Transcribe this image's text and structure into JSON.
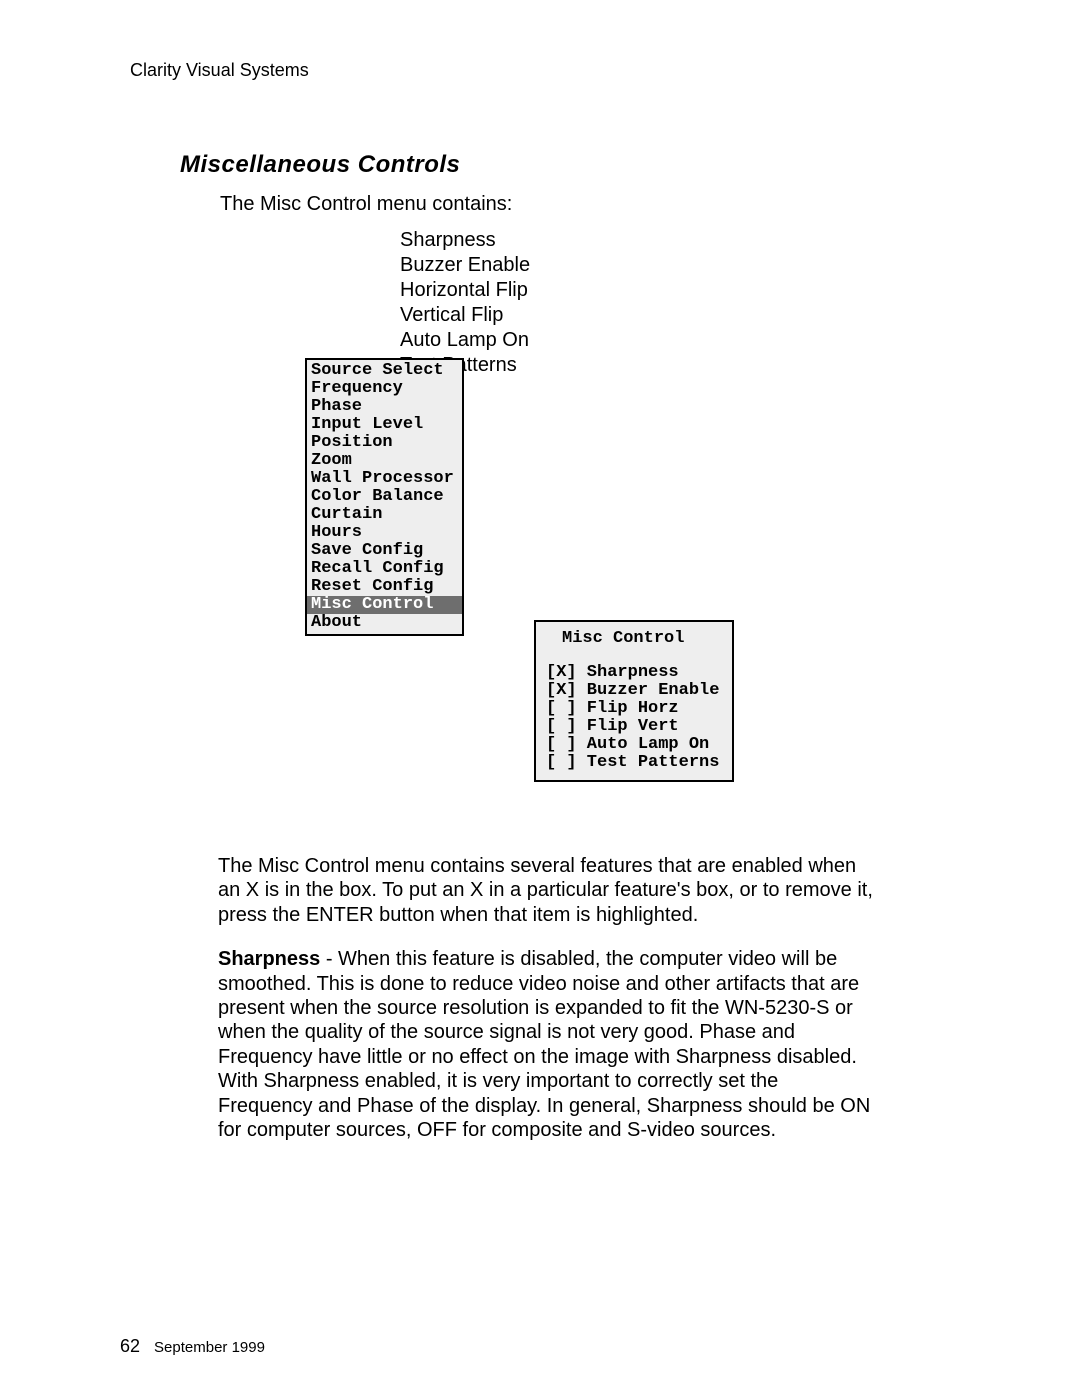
{
  "header": "Clarity Visual Systems",
  "section_title": "Miscellaneous Controls",
  "intro": "The Misc Control menu contains:",
  "features": {
    "f0": "Sharpness",
    "f1": "Buzzer Enable",
    "f2": "Horizontal Flip",
    "f3": "Vertical Flip",
    "f4": "Auto Lamp On",
    "f5": "Test Patterns"
  },
  "main_menu": {
    "colors": {
      "bg": "#eeeeee",
      "border": "#000000",
      "selected_bg": "#6e6e6e",
      "selected_fg": "#ffffff"
    },
    "selected_index": 13,
    "items": {
      "i0": "Source Select",
      "i1": "Frequency",
      "i2": "Phase",
      "i3": "Input Level",
      "i4": "Position",
      "i5": "Zoom",
      "i6": "Wall Processor",
      "i7": "Color Balance",
      "i8": "Curtain",
      "i9": "Hours",
      "i10": "Save Config",
      "i11": "Recall Config",
      "i12": "Reset Config",
      "i13": "Misc Control",
      "i14": "About"
    }
  },
  "misc_menu": {
    "title": "Misc Control",
    "lines": {
      "l0": "[X] Sharpness",
      "l1": "[X] Buzzer Enable",
      "l2": "[ ] Flip Horz",
      "l3": "[ ] Flip Vert",
      "l4": "[ ] Auto Lamp On",
      "l5": "[ ] Test Patterns"
    }
  },
  "body": {
    "p1": "The Misc Control menu contains several features that are enabled when an X is in the box. To put an X in a particular feature's box, or to remove it, press the ENTER button when that item is highlighted.",
    "p2_bold": "Sharpness",
    "p2_rest": " - When this feature is disabled, the computer video will be smoothed. This is done to reduce video noise and other artifacts that are present when the source resolution is expanded to fit the WN-5230-S or when the quality of the source signal is not very good. Phase and Frequency have little or no effect on the image with Sharpness disabled. With Sharpness enabled, it is very important to correctly set the Frequency and Phase of the display. In general, Sharpness should be ON for computer sources, OFF for composite and S-video sources."
  },
  "footer": {
    "page": "62",
    "date": "September 1999"
  }
}
